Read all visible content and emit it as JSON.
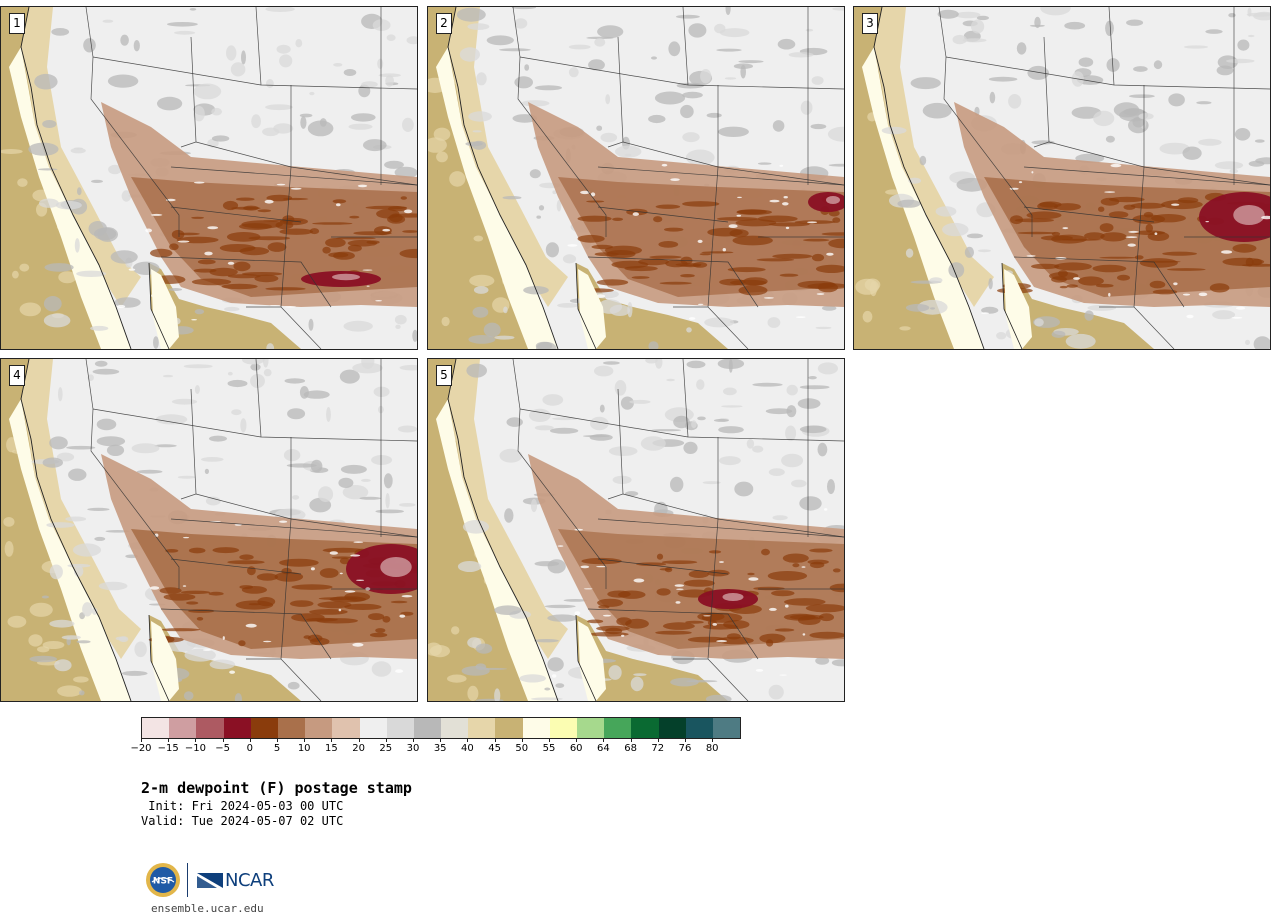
{
  "panels": [
    {
      "label": "1",
      "intensity": 1.0,
      "hotspot": "south-east"
    },
    {
      "label": "2",
      "intensity": 0.95,
      "hotspot": "east"
    },
    {
      "label": "3",
      "intensity": 1.05,
      "hotspot": "east-strong"
    },
    {
      "label": "4",
      "intensity": 1.1,
      "hotspot": "east-strong"
    },
    {
      "label": "5",
      "intensity": 0.9,
      "hotspot": "central"
    }
  ],
  "colorbar": {
    "colors": [
      "#f3e4e4",
      "#cf9ea1",
      "#ad5a62",
      "#8a1024",
      "#8a3c0c",
      "#a9704b",
      "#c69a80",
      "#e0c2ae",
      "#efefef",
      "#d9d9d9",
      "#b8b8b8",
      "#e2e0d6",
      "#e6d6aa",
      "#c8b274",
      "#fefce8",
      "#fbfdb2",
      "#a6d98d",
      "#46a65a",
      "#0a6a32",
      "#04402a",
      "#19555f",
      "#4e7b83"
    ],
    "tick_labels": [
      "−20",
      "−15",
      "−10",
      "−5",
      "0",
      "5",
      "10",
      "15",
      "20",
      "25",
      "30",
      "35",
      "40",
      "45",
      "50",
      "55",
      "60",
      "64",
      "68",
      "72",
      "76",
      "80"
    ]
  },
  "title": "2-m dewpoint (F) postage stamp",
  "init_text": " Init: Fri 2024-05-03 00 UTC",
  "valid_text": "Valid: Tue 2024-05-07 02 UTC",
  "logo": {
    "nsf_text": "NSF",
    "ncar_text": "NCAR"
  },
  "url": "ensemble.ucar.edu"
}
